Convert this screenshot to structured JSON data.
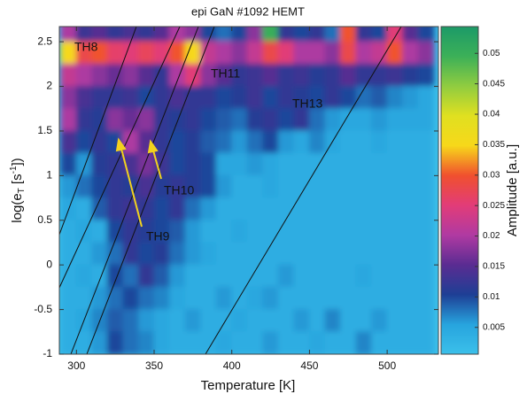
{
  "chart_data": {
    "type": "heatmap",
    "title": "epi GaN #1092 HEMT",
    "x_label": "Temperature  [K]",
    "y_label_parts": [
      "log(e",
      "T",
      " [s",
      "-1",
      "])"
    ],
    "colorbar_label": "Amplitude [a.u.]",
    "xlim": [
      289,
      533
    ],
    "ylim": [
      -1,
      2.67
    ],
    "xticks": [
      300,
      350,
      400,
      450,
      500
    ],
    "yticks": [
      -1,
      -0.5,
      0,
      0.5,
      1,
      1.5,
      2,
      2.5
    ],
    "clim": [
      0.0006,
      0.0544
    ],
    "cticks": [
      0.005,
      0.01,
      0.015,
      0.02,
      0.025,
      0.03,
      0.035,
      0.04,
      0.045,
      0.05
    ],
    "colormap": [
      "#3bc0ea",
      "#27a4de",
      "#1e3f95",
      "#5a2c92",
      "#b03aa2",
      "#e23c78",
      "#f0502e",
      "#f7d81a",
      "#e0e020",
      "#90cc40",
      "#3cb058",
      "#1c9a68"
    ],
    "x": [
      295,
      305,
      315,
      325,
      335,
      345,
      355,
      365,
      375,
      385,
      395,
      405,
      415,
      425,
      435,
      445,
      455,
      465,
      475,
      485,
      495,
      505,
      515,
      525
    ],
    "y": [
      2.625,
      2.375,
      2.125,
      1.875,
      1.625,
      1.375,
      1.125,
      0.875,
      0.625,
      0.375,
      0.125,
      -0.125,
      -0.375,
      -0.625,
      -0.875
    ],
    "z": [
      [
        0.02,
        0.013,
        0.015,
        0.012,
        0.014,
        0.012,
        0.015,
        0.02,
        0.018,
        0.01,
        0.008,
        0.01,
        0.018,
        0.05,
        0.012,
        0.01,
        0.012,
        0.008,
        0.03,
        0.012,
        0.01,
        0.025,
        0.015,
        0.01
      ],
      [
        0.035,
        0.028,
        0.03,
        0.026,
        0.025,
        0.027,
        0.025,
        0.03,
        0.035,
        0.022,
        0.02,
        0.018,
        0.022,
        0.028,
        0.025,
        0.02,
        0.02,
        0.018,
        0.028,
        0.02,
        0.022,
        0.03,
        0.02,
        0.018
      ],
      [
        0.022,
        0.02,
        0.018,
        0.016,
        0.018,
        0.015,
        0.012,
        0.02,
        0.025,
        0.018,
        0.015,
        0.012,
        0.013,
        0.015,
        0.012,
        0.013,
        0.011,
        0.012,
        0.015,
        0.012,
        0.012,
        0.013,
        0.011,
        0.01
      ],
      [
        0.018,
        0.014,
        0.012,
        0.012,
        0.013,
        0.01,
        0.012,
        0.014,
        0.012,
        0.012,
        0.01,
        0.011,
        0.013,
        0.01,
        0.012,
        0.011,
        0.01,
        0.012,
        0.01,
        0.008,
        0.009,
        0.007,
        0.006,
        0.005
      ],
      [
        0.02,
        0.012,
        0.011,
        0.018,
        0.016,
        0.018,
        0.012,
        0.011,
        0.012,
        0.01,
        0.009,
        0.008,
        0.011,
        0.012,
        0.01,
        0.012,
        0.008,
        0.006,
        0.005,
        0.005,
        0.006,
        0.005,
        0.005,
        0.005
      ],
      [
        0.014,
        0.01,
        0.012,
        0.01,
        0.02,
        0.015,
        0.012,
        0.01,
        0.011,
        0.009,
        0.008,
        0.006,
        0.008,
        0.01,
        0.006,
        0.005,
        0.007,
        0.005,
        0.004,
        0.004,
        0.005,
        0.004,
        0.004,
        0.004
      ],
      [
        0.01,
        0.006,
        0.011,
        0.012,
        0.014,
        0.017,
        0.013,
        0.01,
        0.011,
        0.01,
        0.005,
        0.005,
        0.006,
        0.005,
        0.004,
        0.004,
        0.004,
        0.004,
        0.004,
        0.004,
        0.004,
        0.004,
        0.004,
        0.004
      ],
      [
        0.006,
        0.008,
        0.01,
        0.012,
        0.011,
        0.014,
        0.011,
        0.012,
        0.011,
        0.01,
        0.006,
        0.004,
        0.004,
        0.005,
        0.004,
        0.004,
        0.004,
        0.004,
        0.004,
        0.004,
        0.004,
        0.004,
        0.004,
        0.004
      ],
      [
        0.005,
        0.004,
        0.009,
        0.012,
        0.013,
        0.012,
        0.01,
        0.012,
        0.008,
        0.006,
        0.004,
        0.004,
        0.004,
        0.004,
        0.004,
        0.004,
        0.004,
        0.004,
        0.004,
        0.004,
        0.004,
        0.004,
        0.004,
        0.004
      ],
      [
        0.004,
        0.005,
        0.004,
        0.01,
        0.012,
        0.011,
        0.01,
        0.009,
        0.006,
        0.004,
        0.004,
        0.005,
        0.004,
        0.004,
        0.004,
        0.004,
        0.004,
        0.004,
        0.004,
        0.004,
        0.004,
        0.004,
        0.004,
        0.004
      ],
      [
        0.004,
        0.004,
        0.006,
        0.008,
        0.012,
        0.01,
        0.011,
        0.008,
        0.006,
        0.005,
        0.004,
        0.004,
        0.004,
        0.004,
        0.004,
        0.004,
        0.004,
        0.004,
        0.004,
        0.004,
        0.004,
        0.004,
        0.004,
        0.004
      ],
      [
        0.004,
        0.005,
        0.004,
        0.01,
        0.008,
        0.012,
        0.009,
        0.006,
        0.004,
        0.004,
        0.004,
        0.004,
        0.004,
        0.004,
        0.006,
        0.004,
        0.004,
        0.004,
        0.004,
        0.005,
        0.004,
        0.004,
        0.004,
        0.004
      ],
      [
        0.004,
        0.004,
        0.006,
        0.008,
        0.01,
        0.008,
        0.007,
        0.005,
        0.004,
        0.004,
        0.006,
        0.004,
        0.005,
        0.006,
        0.004,
        0.004,
        0.004,
        0.004,
        0.004,
        0.004,
        0.004,
        0.004,
        0.004,
        0.004
      ],
      [
        0.004,
        0.005,
        0.007,
        0.009,
        0.008,
        0.006,
        0.005,
        0.004,
        0.006,
        0.004,
        0.004,
        0.005,
        0.004,
        0.004,
        0.004,
        0.006,
        0.004,
        0.007,
        0.004,
        0.004,
        0.006,
        0.004,
        0.004,
        0.004
      ],
      [
        0.004,
        0.004,
        0.006,
        0.01,
        0.008,
        0.007,
        0.005,
        0.004,
        0.004,
        0.004,
        0.005,
        0.004,
        0.004,
        0.006,
        0.004,
        0.004,
        0.005,
        0.004,
        0.004,
        0.007,
        0.004,
        0.004,
        0.004,
        0.004
      ]
    ],
    "annotations": [
      {
        "text": "TH8",
        "color": "#f2c228"
      },
      {
        "text": "TH11",
        "color": "#f2c228"
      },
      {
        "text": "TH13",
        "color": "#f2c228"
      },
      {
        "text": "TH10",
        "color": "#111111"
      },
      {
        "text": "TH9",
        "color": "#111111"
      }
    ]
  }
}
